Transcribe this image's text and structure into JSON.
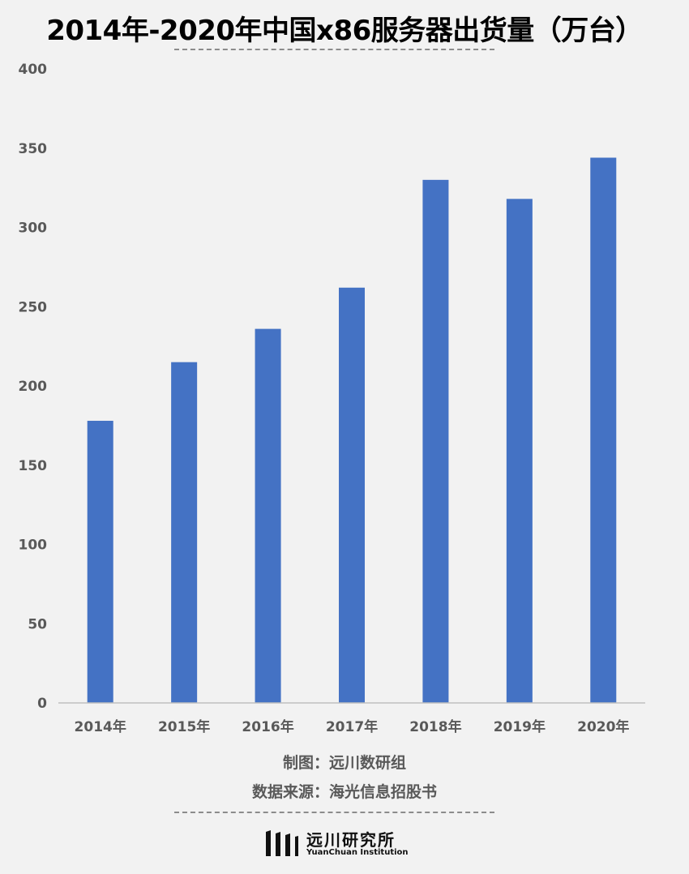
{
  "chart_data": {
    "type": "bar",
    "title": "2014年-2020年中国x86服务器出货量（万台）",
    "categories": [
      "2014年",
      "2015年",
      "2016年",
      "2017年",
      "2018年",
      "2019年",
      "2020年"
    ],
    "values": [
      178,
      215,
      236,
      262,
      330,
      318,
      344
    ],
    "ylim": [
      0,
      400
    ],
    "yticks": [
      0,
      50,
      100,
      150,
      200,
      250,
      300,
      350,
      400
    ],
    "grid": false,
    "bar_color": "#4472c4"
  },
  "credits": {
    "made_by": "制图：远川数研组",
    "source": "数据来源：海光信息招股书"
  },
  "logo": {
    "name_cn": "远川研究所",
    "name_en": "YuanChuan Institution"
  }
}
